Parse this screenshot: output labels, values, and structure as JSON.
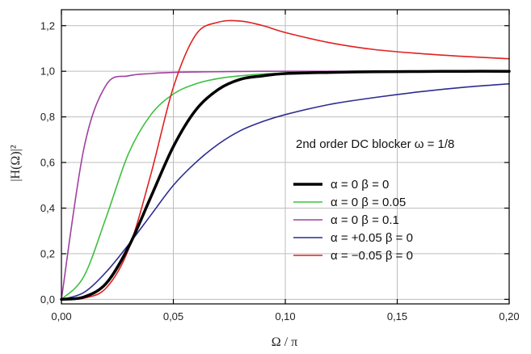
{
  "chart_data": {
    "type": "line",
    "title": "",
    "annotation": "2nd order DC blocker  ω = 1/8",
    "xlabel": "Ω / π",
    "ylabel": "|H(Ω)|²",
    "xlim": [
      0,
      0.2
    ],
    "ylim": [
      -0.02,
      1.27
    ],
    "xticks": [
      0.0,
      0.05,
      0.1,
      0.15,
      0.2
    ],
    "xtick_labels": [
      "0,00",
      "0,05",
      "0,10",
      "0,15",
      "0,20"
    ],
    "yticks": [
      0.0,
      0.2,
      0.4,
      0.6,
      0.8,
      1.0,
      1.2
    ],
    "ytick_labels": [
      "0,0",
      "0,2",
      "0,4",
      "0,6",
      "0,8",
      "1,0",
      "1,2"
    ],
    "grid": true,
    "legend_position": "right",
    "x": [
      0.0,
      0.01,
      0.02,
      0.03,
      0.04,
      0.05,
      0.06,
      0.07,
      0.08,
      0.09,
      0.1,
      0.12,
      0.14,
      0.16,
      0.18,
      0.2
    ],
    "series": [
      {
        "name": "α = 0  β = 0",
        "color": "#000000",
        "width": 3.5,
        "values": [
          0.0,
          0.01,
          0.07,
          0.23,
          0.45,
          0.67,
          0.83,
          0.92,
          0.965,
          0.98,
          0.99,
          0.995,
          0.998,
          0.999,
          1.0,
          1.0
        ]
      },
      {
        "name": "α = 0  β = 0.05",
        "color": "#3fbf3f",
        "width": 1.6,
        "values": [
          0.0,
          0.1,
          0.36,
          0.64,
          0.81,
          0.9,
          0.945,
          0.968,
          0.98,
          0.988,
          0.992,
          0.996,
          0.998,
          0.999,
          1.0,
          1.0
        ]
      },
      {
        "name": "α = 0  β = 0.1",
        "color": "#a040a0",
        "width": 1.6,
        "values": [
          0.0,
          0.66,
          0.94,
          0.98,
          0.99,
          0.995,
          0.997,
          0.998,
          0.999,
          1.0,
          1.0,
          1.0,
          1.0,
          1.0,
          1.0,
          1.0
        ]
      },
      {
        "name": "α = +0.05  β = 0",
        "color": "#2c2c90",
        "width": 1.6,
        "values": [
          0.0,
          0.03,
          0.12,
          0.24,
          0.37,
          0.5,
          0.6,
          0.68,
          0.74,
          0.78,
          0.81,
          0.855,
          0.885,
          0.91,
          0.93,
          0.945
        ]
      },
      {
        "name": "α = −0.05  β = 0",
        "color": "#e02020",
        "width": 1.6,
        "values": [
          0.0,
          0.005,
          0.05,
          0.22,
          0.55,
          0.93,
          1.16,
          1.215,
          1.22,
          1.2,
          1.17,
          1.125,
          1.095,
          1.078,
          1.065,
          1.055
        ]
      }
    ]
  }
}
